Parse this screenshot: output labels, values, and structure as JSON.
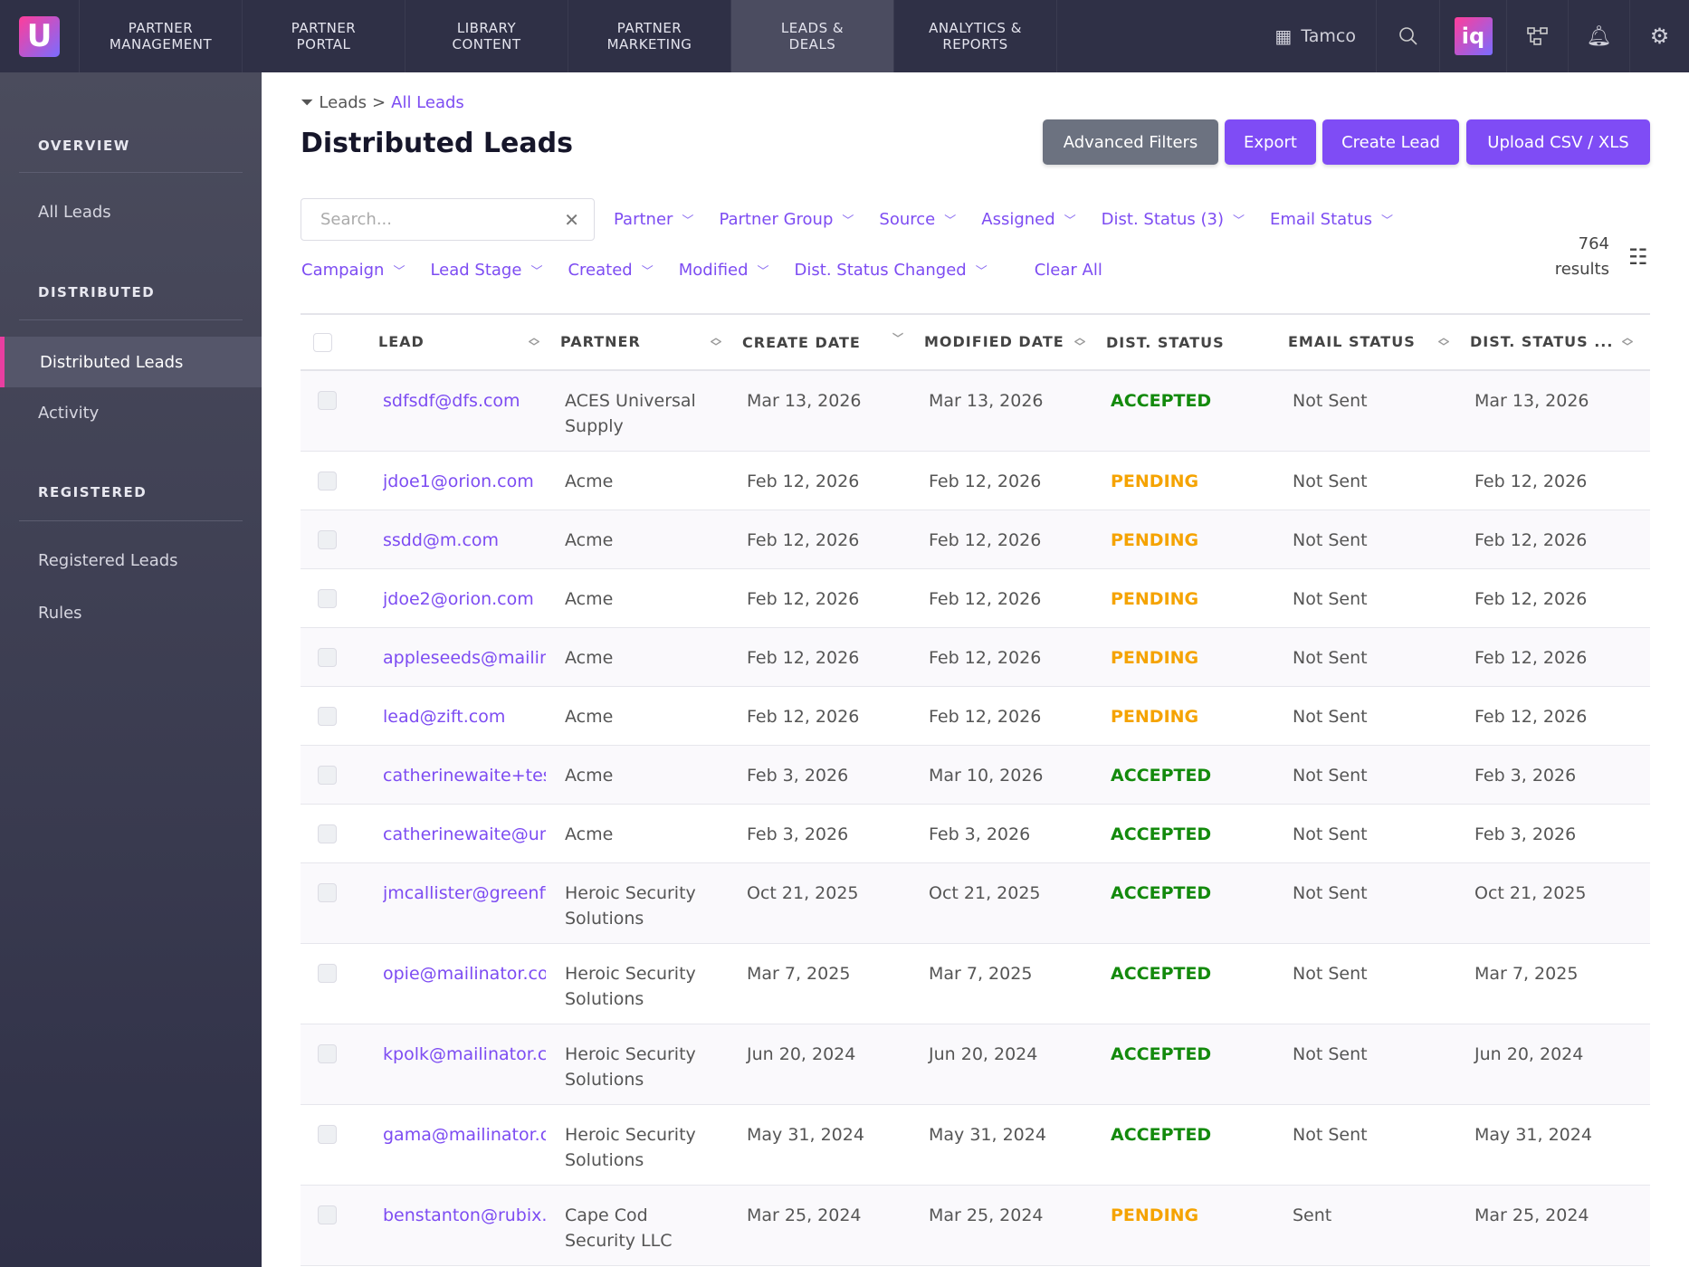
{
  "nav": {
    "items": [
      "PARTNER\nMANAGEMENT",
      "PARTNER\nPORTAL",
      "LIBRARY\nCONTENT",
      "PARTNER\nMARKETING",
      "LEADS &\nDEALS",
      "ANALYTICS &\nREPORTS"
    ],
    "active": 4,
    "logo": "U",
    "company": "Tamco",
    "iq_label": "iq"
  },
  "sidebar": {
    "overview": "OVERVIEW",
    "all_leads": "All Leads",
    "distributed": "DISTRIBUTED",
    "distributed_leads": "Distributed Leads",
    "activity": "Activity",
    "registered": "REGISTERED",
    "registered_leads": "Registered Leads",
    "rules": "Rules"
  },
  "breadcrumb": {
    "root": "Leads",
    "sep": ">",
    "current": "All Leads"
  },
  "title": "Distributed Leads",
  "buttons": {
    "advanced": "Advanced Filters",
    "export": "Export",
    "create": "Create Lead",
    "upload": "Upload CSV / XLS"
  },
  "search": {
    "placeholder": "Search..."
  },
  "filters_row1": [
    "Partner",
    "Partner Group",
    "Source",
    "Assigned",
    "Dist. Status (3)",
    "Email Status"
  ],
  "filters_row2": [
    "Campaign",
    "Lead Stage",
    "Created",
    "Modified",
    "Dist. Status Changed"
  ],
  "clear_all": "Clear All",
  "results": {
    "count": "764",
    "label": "results"
  },
  "colors": {
    "accent": "#7f4cf5",
    "accepted": "#138a0c",
    "pending": "#f5a300",
    "nav": "#2f3046"
  },
  "table": {
    "headers": [
      "LEAD",
      "PARTNER",
      "CREATE DATE",
      "MODIFIED DATE",
      "DIST. STATUS",
      "EMAIL STATUS",
      "DIST. STATUS ..."
    ],
    "rows": [
      [
        "sdfsdf@dfs.com",
        "ACES Universal Supply",
        "Mar 13, 2026",
        "Mar 13, 2026",
        "ACCEPTED",
        "Not Sent",
        "Mar 13, 2026"
      ],
      [
        "jdoe1@orion.com",
        "Acme",
        "Feb 12, 2026",
        "Feb 12, 2026",
        "PENDING",
        "Not Sent",
        "Feb 12, 2026"
      ],
      [
        "ssdd@m.com",
        "Acme",
        "Feb 12, 2026",
        "Feb 12, 2026",
        "PENDING",
        "Not Sent",
        "Feb 12, 2026"
      ],
      [
        "jdoe2@orion.com",
        "Acme",
        "Feb 12, 2026",
        "Feb 12, 2026",
        "PENDING",
        "Not Sent",
        "Feb 12, 2026"
      ],
      [
        "appleseeds@mailinator.com",
        "Acme",
        "Feb 12, 2026",
        "Feb 12, 2026",
        "PENDING",
        "Not Sent",
        "Feb 12, 2026"
      ],
      [
        "lead@zift.com",
        "Acme",
        "Feb 12, 2026",
        "Feb 12, 2026",
        "PENDING",
        "Not Sent",
        "Feb 12, 2026"
      ],
      [
        "catherinewaite+test",
        "Acme",
        "Feb 3, 2026",
        "Mar 10, 2026",
        "ACCEPTED",
        "Not Sent",
        "Feb 3, 2026"
      ],
      [
        "catherinewaite@uni",
        "Acme",
        "Feb 3, 2026",
        "Feb 3, 2026",
        "ACCEPTED",
        "Not Sent",
        "Feb 3, 2026"
      ],
      [
        "jmcallister@greenfie",
        "Heroic Security Solutions",
        "Oct 21, 2025",
        "Oct 21, 2025",
        "ACCEPTED",
        "Not Sent",
        "Oct 21, 2025"
      ],
      [
        "opie@mailinator.com",
        "Heroic Security Solutions",
        "Mar 7, 2025",
        "Mar 7, 2025",
        "ACCEPTED",
        "Not Sent",
        "Mar 7, 2025"
      ],
      [
        "kpolk@mailinator.com",
        "Heroic Security Solutions",
        "Jun 20, 2024",
        "Jun 20, 2024",
        "ACCEPTED",
        "Not Sent",
        "Jun 20, 2024"
      ],
      [
        "gama@mailinator.com",
        "Heroic Security Solutions",
        "May 31, 2024",
        "May 31, 2024",
        "ACCEPTED",
        "Not Sent",
        "May 31, 2024"
      ],
      [
        "benstanton@rubix.com",
        "Cape Cod Security LLC",
        "Mar 25, 2024",
        "Mar 25, 2024",
        "PENDING",
        "Sent",
        "Mar 25, 2024"
      ]
    ]
  }
}
